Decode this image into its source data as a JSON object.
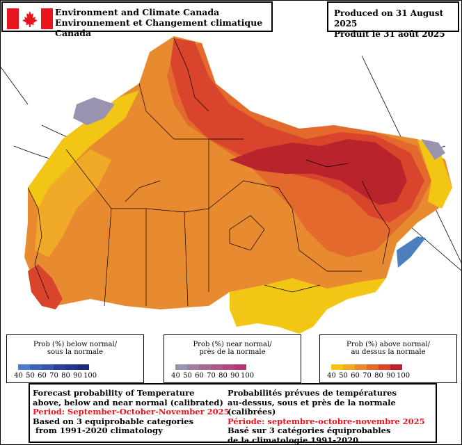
{
  "header": {
    "agency_en": "Environment and Climate Canada",
    "agency_fr": "Environnement et Changement climatique Canada",
    "produced_en": "Produced on 31 August 2025",
    "produced_fr": "Produit le 31 août 2025"
  },
  "legends": {
    "below": {
      "title_en": "Prob (%) below normal/",
      "title_fr": "sous la normale",
      "ticks": [
        "40",
        "50",
        "60",
        "70",
        "80",
        "90",
        "100"
      ],
      "colors": [
        "#4a7fc0",
        "#3b66b4",
        "#3a55a8",
        "#2e3f9a",
        "#26358c",
        "#1c2a78"
      ]
    },
    "near": {
      "title_en": "Prob (%) near normal/",
      "title_fr": "près de la normale",
      "ticks": [
        "40",
        "50",
        "60",
        "70",
        "80",
        "90",
        "100"
      ],
      "colors": [
        "#9a93b0",
        "#a27fa0",
        "#a56a92",
        "#a85a88",
        "#ad4a7e",
        "#b23a74"
      ]
    },
    "above": {
      "title_en": "Prob (%) above normal/",
      "title_fr": "au dessus la normale",
      "ticks": [
        "40",
        "50",
        "60",
        "70",
        "80",
        "90",
        "100"
      ],
      "colors": [
        "#f2c614",
        "#f0aa28",
        "#e88a30",
        "#e36a2c",
        "#d8442c",
        "#b9242c"
      ]
    }
  },
  "info": {
    "en": {
      "line1": "Forecast probability of Temperature",
      "line2": "above, below and near normal (calibrated)",
      "period": "Period: September-October-November 2025",
      "line4": "Based on 3 equiprobable categories",
      "line5": " from 1991-2020 climatology"
    },
    "fr": {
      "line1": "Probabilités prévues de températures",
      "line2": "au-dessus, sous et près de la normale (calibrées)",
      "period": "Période: septembre-octobre-novembre 2025",
      "line4": "Basé sur 3 catégories équiprobables",
      "line5": "de la climatologie 1991-2020"
    }
  },
  "colors": {
    "above_40": "#f2c614",
    "above_60": "#e88a30",
    "above_70": "#e36a2c",
    "above_80": "#d8442c",
    "above_90": "#b9242c",
    "near": "#9a93b0",
    "below": "#4a7fc0"
  }
}
